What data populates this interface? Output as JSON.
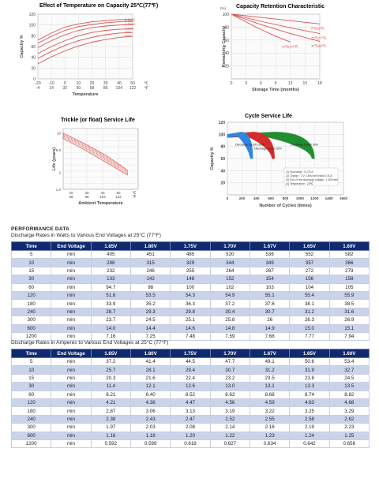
{
  "chart_data": [
    {
      "type": "line",
      "title": "Effect of Temperature on Capacity  25℃(77℉)",
      "xlabel": "Temperature",
      "ylabel": "Capacity %",
      "x_ticks_c": [
        "-20",
        "-10",
        "0",
        "10",
        "20",
        "30",
        "40",
        "50",
        "℃"
      ],
      "x_ticks_f": [
        "-4",
        "14",
        "32",
        "50",
        "68",
        "86",
        "104",
        "122",
        "℉"
      ],
      "y_ticks": [
        "0",
        "20",
        "40",
        "60",
        "80",
        "100",
        "120"
      ],
      "xlim": [
        -20,
        50
      ],
      "ylim": [
        0,
        120
      ],
      "series": [
        {
          "name": "0.05CA",
          "points": [
            [
              -20,
              72
            ],
            [
              -10,
              85
            ],
            [
              0,
              96
            ],
            [
              10,
              102
            ],
            [
              20,
              106
            ],
            [
              30,
              108
            ],
            [
              40,
              110
            ],
            [
              50,
              110
            ]
          ]
        },
        {
          "name": "0.1CA",
          "points": [
            [
              -20,
              66
            ],
            [
              -10,
              79
            ],
            [
              0,
              90
            ],
            [
              10,
              97
            ],
            [
              20,
              101
            ],
            [
              30,
              104
            ],
            [
              40,
              106
            ],
            [
              50,
              107
            ]
          ]
        },
        {
          "name": "0.25CA",
          "points": [
            [
              -20,
              58
            ],
            [
              -10,
              71
            ],
            [
              0,
              82
            ],
            [
              10,
              90
            ],
            [
              20,
              95
            ],
            [
              30,
              98
            ],
            [
              40,
              100
            ],
            [
              50,
              101
            ]
          ]
        },
        {
          "name": "0.6CA",
          "points": [
            [
              -20,
              47
            ],
            [
              -10,
              60
            ],
            [
              0,
              71
            ],
            [
              10,
              80
            ],
            [
              20,
              86
            ],
            [
              30,
              90
            ],
            [
              40,
              92
            ],
            [
              50,
              93
            ]
          ]
        },
        {
          "name": "1CA",
          "points": [
            [
              -20,
              38
            ],
            [
              -10,
              51
            ],
            [
              0,
              62
            ],
            [
              10,
              71
            ],
            [
              20,
              77
            ],
            [
              30,
              82
            ],
            [
              40,
              85
            ],
            [
              50,
              86
            ]
          ]
        },
        {
          "name": "2CA",
          "points": [
            [
              -20,
              28
            ],
            [
              -10,
              41
            ],
            [
              0,
              52
            ],
            [
              10,
              61
            ],
            [
              20,
              68
            ],
            [
              30,
              73
            ],
            [
              40,
              77
            ],
            [
              50,
              79
            ]
          ]
        }
      ],
      "line_color": "#d9534f"
    },
    {
      "type": "line",
      "title": "Capacity Retention Characteristic",
      "xlabel": "Storage Time (months)",
      "ylabel": "Remaining Capacity",
      "y_unit": "(%)",
      "x_ticks": [
        "0",
        "3",
        "6",
        "9",
        "12",
        "15",
        "18"
      ],
      "y_ticks": [
        "20",
        "40",
        "60",
        "80",
        "100"
      ],
      "xlim": [
        0,
        18
      ],
      "ylim": [
        0,
        100
      ],
      "series": [
        {
          "name": "0℃(32℉)",
          "points": [
            [
              0,
              100
            ],
            [
              6,
              95
            ],
            [
              12,
              90
            ],
            [
              18,
              85
            ]
          ]
        },
        {
          "name": "25℃(77℉)",
          "points": [
            [
              0,
              100
            ],
            [
              6,
              89
            ],
            [
              12,
              79
            ],
            [
              18,
              70
            ]
          ]
        },
        {
          "name": "30℃(86℉)",
          "points": [
            [
              0,
              100
            ],
            [
              6,
              84
            ],
            [
              12,
              70
            ],
            [
              18,
              58
            ]
          ]
        },
        {
          "name": "40℃(104℉)",
          "points": [
            [
              0,
              100
            ],
            [
              5,
              80
            ],
            [
              9,
              66
            ],
            [
              12,
              57
            ]
          ]
        }
      ],
      "line_color": "#d9534f"
    },
    {
      "type": "area",
      "title": "Trickle (or float) Service Life",
      "xlabel": "Ambient Temperature",
      "ylabel": "Life (years)",
      "x_ticks_c": [
        "20",
        "30",
        "40",
        "50",
        "℃"
      ],
      "x_ticks_f": [
        "68",
        "86",
        "104",
        "122",
        "℉"
      ],
      "y_ticks": [
        "1.0",
        "2",
        "5.0",
        "10"
      ],
      "xlim": [
        20,
        55
      ],
      "band": [
        {
          "x": 20,
          "upper": 10.0,
          "lower": 8.0
        },
        {
          "x": 30,
          "upper": 6.5,
          "lower": 5.0
        },
        {
          "x": 40,
          "upper": 4.0,
          "lower": 3.0
        },
        {
          "x": 50,
          "upper": 2.2,
          "lower": 1.8
        }
      ],
      "band_color": "#d9534f"
    },
    {
      "type": "area",
      "title": "Cycle Service Life",
      "xlabel": "Number of Cycles (times)",
      "ylabel": "Capacity %",
      "x_ticks": [
        "0",
        "200",
        "400",
        "600",
        "800",
        "1000",
        "1200",
        "1400",
        "1600"
      ],
      "y_ticks": [
        "20",
        "40",
        "60",
        "80",
        "100",
        "120"
      ],
      "xlim": [
        0,
        1600
      ],
      "ylim": [
        0,
        120
      ],
      "series": [
        {
          "name": "Discharge Depth 100%",
          "color": "#2f86e0",
          "end": 350
        },
        {
          "name": "Discharge Depth 50%",
          "color": "#d62b2b",
          "end": 650
        },
        {
          "name": "Discharge Depth 30%",
          "color": "#1f8f2f",
          "end": 1200
        }
      ],
      "notes": [
        "(1) Discharge : 0.17CA",
        "(2) Charge : CV 2.45V/cell Initial 0.3CA",
        "(3) End of the discharge voltage : 1.80V/cell",
        "(4) Temperature : 25℃"
      ]
    }
  ],
  "performance": {
    "title": "PERFORMANCE DATA",
    "watts": {
      "caption": "Discharge Rates in Watts to Various End Voltages at 25°C (77°F)",
      "headers": [
        "Time",
        "End Voltage",
        "1.85V",
        "1.80V",
        "1.75V",
        "1.70V",
        "1.67V",
        "1.65V",
        "1.60V"
      ],
      "rows": [
        [
          "5",
          "min",
          "405",
          "451",
          "485",
          "520",
          "536",
          "552",
          "582"
        ],
        [
          "10",
          "min",
          "288",
          "315",
          "329",
          "344",
          "349",
          "357",
          "366"
        ],
        [
          "15",
          "min",
          "232",
          "246",
          "255",
          "264",
          "267",
          "272",
          "279"
        ],
        [
          "30",
          "min",
          "133",
          "142",
          "148",
          "152",
          "154",
          "156",
          "158"
        ],
        [
          "60",
          "min",
          "94.7",
          "98",
          "100",
          "102",
          "103",
          "104",
          "105"
        ],
        [
          "120",
          "min",
          "51.8",
          "53.5",
          "54.3",
          "54.9",
          "55.1",
          "55.4",
          "55.9"
        ],
        [
          "180",
          "min",
          "33.9",
          "35.2",
          "36.3",
          "37.2",
          "37.6",
          "38.1",
          "38.5"
        ],
        [
          "240",
          "min",
          "28.7",
          "29.3",
          "29.8",
          "30.4",
          "30.7",
          "31.2",
          "31.6"
        ],
        [
          "300",
          "min",
          "23.7",
          "24.5",
          "25.1",
          "25.8",
          "26",
          "26.3",
          "26.9"
        ],
        [
          "600",
          "min",
          "14.0",
          "14.4",
          "14.6",
          "14.8",
          "14.9",
          "15.0",
          "15.1"
        ],
        [
          "1200",
          "min",
          "7.16",
          "7.25",
          "7.48",
          "7.59",
          "7.68",
          "7.77",
          "7.94"
        ]
      ]
    },
    "amperes": {
      "caption": "Discharge Rates in Amperes to Various End Voltages at 25°C (77°F)",
      "headers": [
        "Time",
        "End Voltage",
        "1.85V",
        "1.80V",
        "1.75V",
        "1.70V",
        "1.67V",
        "1.65V",
        "1.60V"
      ],
      "rows": [
        [
          "5",
          "min",
          "37.2",
          "41.4",
          "44.5",
          "47.7",
          "49.1",
          "50.6",
          "53.4"
        ],
        [
          "10",
          "min",
          "25.7",
          "28.1",
          "29.4",
          "30.7",
          "31.2",
          "31.9",
          "32.7"
        ],
        [
          "15",
          "min",
          "20.3",
          "21.6",
          "22.4",
          "23.2",
          "23.5",
          "23.8",
          "24.5"
        ],
        [
          "30",
          "min",
          "11.4",
          "12.1",
          "12.6",
          "13.0",
          "13.1",
          "13.3",
          "13.5"
        ],
        [
          "60",
          "min",
          "8.21",
          "8.40",
          "8.52",
          "8.63",
          "8.68",
          "8.74",
          "8.82"
        ],
        [
          "120",
          "min",
          "4.21",
          "4.36",
          "4.47",
          "4.56",
          "4.59",
          "4.63",
          "4.68"
        ],
        [
          "180",
          "min",
          "2.87",
          "3.06",
          "3.13",
          "3.19",
          "3.22",
          "3.25",
          "3.29"
        ],
        [
          "240",
          "min",
          "2.38",
          "2.43",
          "2.47",
          "2.52",
          "2.55",
          "2.58",
          "2.62"
        ],
        [
          "300",
          "min",
          "1.97",
          "2.03",
          "2.08",
          "2.14",
          "2.16",
          "2.19",
          "2.23"
        ],
        [
          "600",
          "min",
          "1.16",
          "1.18",
          "1.20",
          "1.22",
          "1.23",
          "1.24",
          "1.25"
        ],
        [
          "1200",
          "min",
          "0.592",
          "0.599",
          "0.618",
          "0.627",
          "0.634",
          "0.642",
          "0.656"
        ]
      ]
    }
  }
}
